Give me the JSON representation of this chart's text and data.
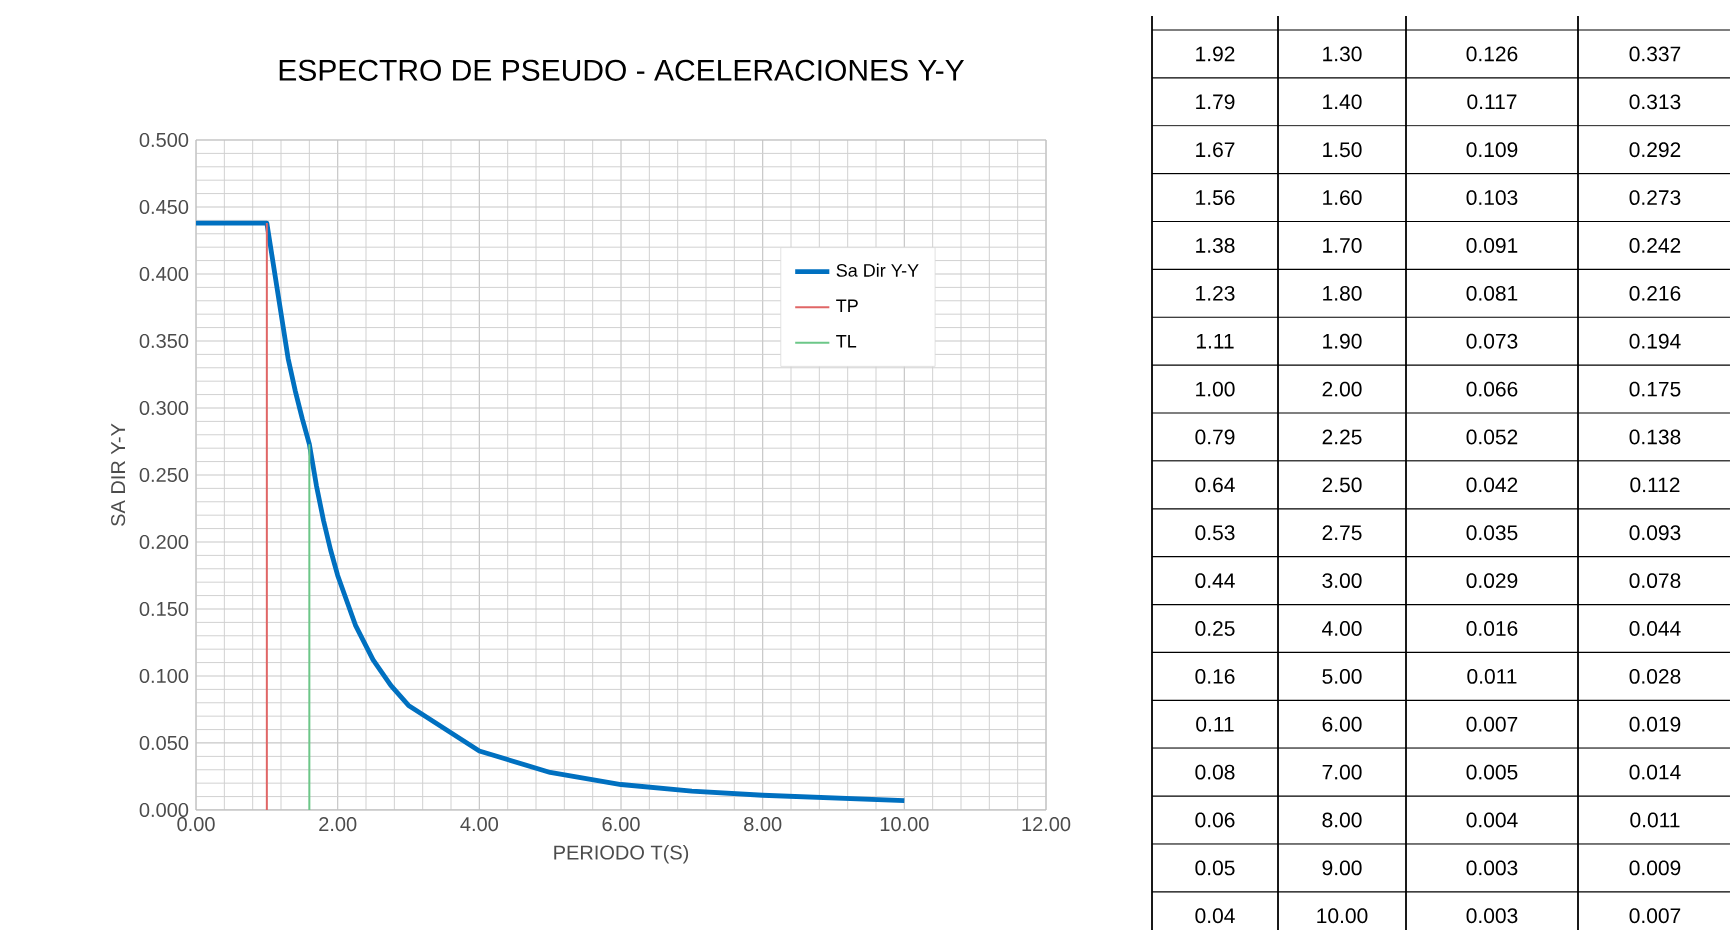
{
  "chart_data": [
    {
      "type": "line",
      "title": "ESPECTRO DE PSEUDO - ACELERACIONES Y-Y",
      "xlabel": "PERIODO T(S)",
      "ylabel": "SA DIR Y-Y",
      "xlim": [
        0,
        12
      ],
      "xticks": [
        {
          "value": 0,
          "label": "0.00"
        },
        {
          "value": 2,
          "label": "2.00"
        },
        {
          "value": 4,
          "label": "4.00"
        },
        {
          "value": 6,
          "label": "6.00"
        },
        {
          "value": 8,
          "label": "8.00"
        },
        {
          "value": 10,
          "label": "10.00"
        },
        {
          "value": 12,
          "label": "12.00"
        }
      ],
      "ylim": [
        0,
        0.5
      ],
      "yticks": [
        {
          "value": 0,
          "label": "0.000"
        },
        {
          "value": 0.05,
          "label": "0.050"
        },
        {
          "value": 0.1,
          "label": "0.100"
        },
        {
          "value": 0.15,
          "label": "0.150"
        },
        {
          "value": 0.2,
          "label": "0.200"
        },
        {
          "value": 0.25,
          "label": "0.250"
        },
        {
          "value": 0.3,
          "label": "0.300"
        },
        {
          "value": 0.35,
          "label": "0.350"
        },
        {
          "value": 0.4,
          "label": "0.400"
        },
        {
          "value": 0.45,
          "label": "0.450"
        },
        {
          "value": 0.5,
          "label": "0.500"
        }
      ],
      "grid": true,
      "legend": "top right",
      "marker": "none",
      "series": [
        {
          "name": "Sa Dir Y-Y",
          "color": "#0070c0",
          "x": [
            0,
            1.0,
            1.3,
            1.4,
            1.5,
            1.6,
            1.7,
            1.8,
            1.9,
            2.0,
            2.25,
            2.5,
            2.75,
            3.0,
            4.0,
            5.0,
            6.0,
            7.0,
            8.0,
            9.0,
            10.0
          ],
          "values": [
            0.438,
            0.438,
            0.337,
            0.313,
            0.292,
            0.273,
            0.242,
            0.216,
            0.194,
            0.175,
            0.138,
            0.112,
            0.093,
            0.078,
            0.044,
            0.028,
            0.019,
            0.014,
            0.011,
            0.009,
            0.007
          ]
        },
        {
          "name": "TP",
          "color": "#e06666",
          "x": [
            1.0,
            1.0
          ],
          "values": [
            0,
            0.438
          ]
        },
        {
          "name": "TL",
          "color": "#6cc788",
          "x": [
            1.6,
            1.6
          ],
          "values": [
            0,
            0.273
          ]
        }
      ]
    },
    {
      "type": "other",
      "annotations": [
        "1.92",
        "1.30",
        "0.126",
        "0.337",
        "1.79",
        "1.40",
        "0.117",
        "0.313",
        "1.67",
        "1.50",
        "0.109",
        "0.292",
        "1.56",
        "1.60",
        "0.103",
        "0.273",
        "1.38",
        "1.70",
        "0.091",
        "0.242",
        "1.23",
        "1.80",
        "0.081",
        "0.216",
        "1.11",
        "1.90",
        "0.073",
        "0.194",
        "1.00",
        "2.00",
        "0.066",
        "0.175",
        "0.79",
        "2.25",
        "0.052",
        "0.138",
        "0.64",
        "2.50",
        "0.042",
        "0.112",
        "0.53",
        "2.75",
        "0.035",
        "0.093",
        "0.44",
        "3.00",
        "0.029",
        "0.078",
        "0.25",
        "4.00",
        "0.016",
        "0.044",
        "0.16",
        "5.00",
        "0.011",
        "0.028",
        "0.11",
        "6.00",
        "0.007",
        "0.019",
        "0.08",
        "7.00",
        "0.005",
        "0.014",
        "0.06",
        "8.00",
        "0.004",
        "0.011",
        "0.05",
        "9.00",
        "0.003",
        "0.009",
        "0.04",
        "10.00",
        "0.003",
        "0.007"
      ]
    }
  ]
}
